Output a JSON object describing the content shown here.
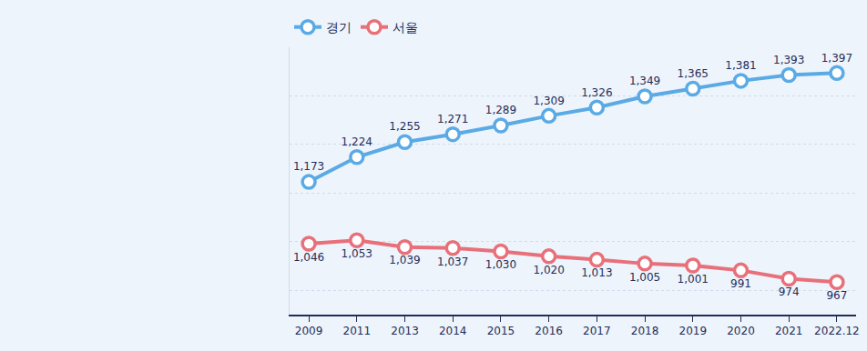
{
  "chart_data": {
    "type": "line",
    "categories": [
      "2009",
      "2011",
      "2013",
      "2014",
      "2015",
      "2016",
      "2017",
      "2018",
      "2019",
      "2020",
      "2021",
      "2022.12"
    ],
    "series": [
      {
        "name": "경기",
        "color": "#5aaae6",
        "values": [
          1173,
          1224,
          1255,
          1271,
          1289,
          1309,
          1326,
          1349,
          1365,
          1381,
          1393,
          1397
        ],
        "value_labels": [
          "1,173",
          "1,224",
          "1,255",
          "1,271",
          "1,289",
          "1,309",
          "1,326",
          "1,349",
          "1,365",
          "1,381",
          "1,393",
          "1,397"
        ]
      },
      {
        "name": "서울",
        "color": "#e8707a",
        "values": [
          1046,
          1053,
          1039,
          1037,
          1030,
          1020,
          1013,
          1005,
          1001,
          991,
          974,
          967
        ],
        "value_labels": [
          "1,046",
          "1,053",
          "1,039",
          "1,037",
          "1,030",
          "1,020",
          "1,013",
          "1,005",
          "1,001",
          "991",
          "974",
          "967"
        ]
      }
    ],
    "ylim": [
      900,
      1450
    ],
    "yticks": [
      950,
      1050,
      1150,
      1250,
      1350
    ],
    "grid": true,
    "legend": "top left",
    "data_labels": true,
    "tick_labels": "x",
    "marker": "circle"
  }
}
